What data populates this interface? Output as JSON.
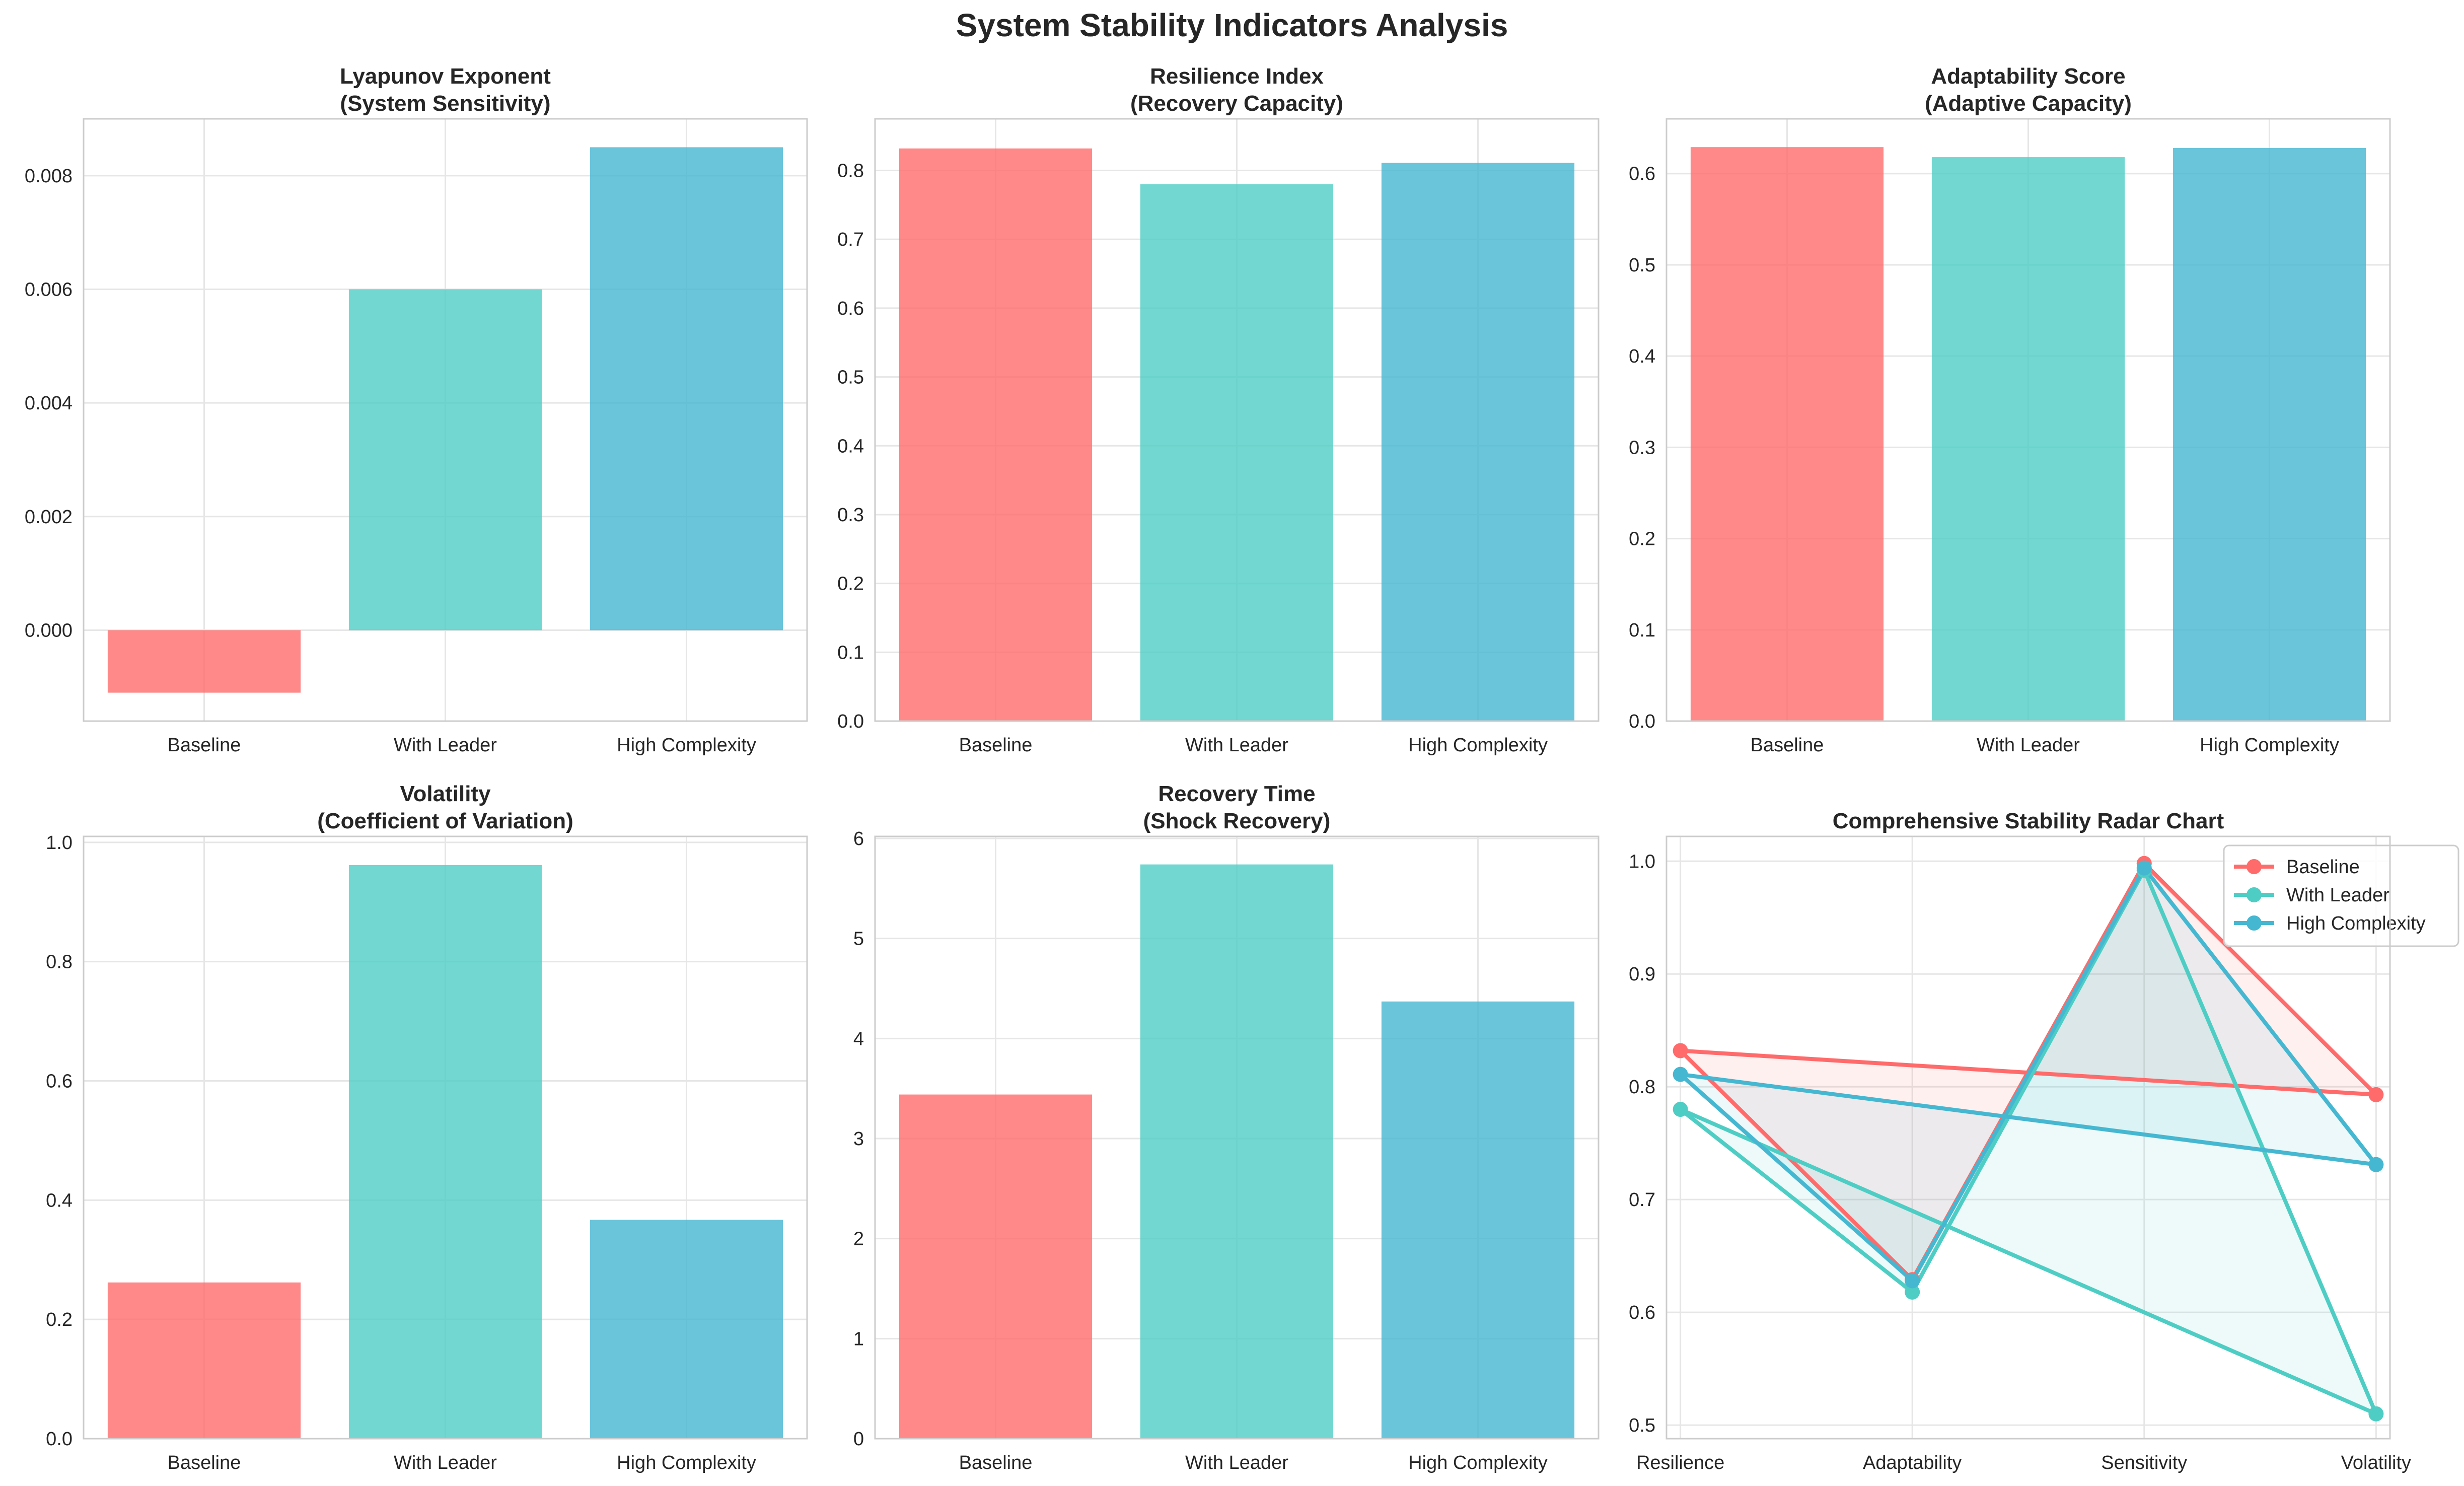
{
  "figure_title": "System Stability Indicators Analysis",
  "colors": {
    "baseline": "#ff6b6b",
    "with_leader": "#4ecdc4",
    "high_complexity": "#45b7d1",
    "grid": "#e6e6e6",
    "spine": "#cccccc",
    "text": "#262626"
  },
  "chart_data": [
    {
      "type": "bar",
      "title": "Lyapunov Exponent",
      "subtitle": "(System Sensitivity)",
      "categories": [
        "Baseline",
        "With Leader",
        "High Complexity"
      ],
      "values": [
        -0.0011,
        0.006,
        0.0085
      ],
      "ylim": [
        -0.0016,
        0.009
      ],
      "yticks": [
        0.0,
        0.002,
        0.004,
        0.006,
        0.008
      ],
      "ytick_labels": [
        "0.000",
        "0.002",
        "0.004",
        "0.006",
        "0.008"
      ],
      "grid": true
    },
    {
      "type": "bar",
      "title": "Resilience Index",
      "subtitle": "(Recovery Capacity)",
      "categories": [
        "Baseline",
        "With Leader",
        "High Complexity"
      ],
      "values": [
        0.832,
        0.78,
        0.811
      ],
      "ylim": [
        0,
        0.875
      ],
      "yticks": [
        0,
        0.1,
        0.2,
        0.3,
        0.4,
        0.5,
        0.6,
        0.7,
        0.8
      ],
      "ytick_labels": [
        "0.0",
        "0.1",
        "0.2",
        "0.3",
        "0.4",
        "0.5",
        "0.6",
        "0.7",
        "0.8"
      ],
      "grid": true
    },
    {
      "type": "bar",
      "title": "Adaptability Score",
      "subtitle": "(Adaptive Capacity)",
      "categories": [
        "Baseline",
        "With Leader",
        "High Complexity"
      ],
      "values": [
        0.629,
        0.618,
        0.628
      ],
      "ylim": [
        0,
        0.66
      ],
      "yticks": [
        0,
        0.1,
        0.2,
        0.3,
        0.4,
        0.5,
        0.6
      ],
      "ytick_labels": [
        "0.0",
        "0.1",
        "0.2",
        "0.3",
        "0.4",
        "0.5",
        "0.6"
      ],
      "grid": true
    },
    {
      "type": "bar",
      "title": "Volatility",
      "subtitle": "(Coefficient of Variation)",
      "categories": [
        "Baseline",
        "With Leader",
        "High Complexity"
      ],
      "values": [
        0.262,
        0.962,
        0.367
      ],
      "ylim": [
        0,
        1.01
      ],
      "yticks": [
        0,
        0.2,
        0.4,
        0.6,
        0.8,
        1.0
      ],
      "ytick_labels": [
        "0.0",
        "0.2",
        "0.4",
        "0.6",
        "0.8",
        "1.0"
      ],
      "grid": true
    },
    {
      "type": "bar",
      "title": "Recovery Time",
      "subtitle": "(Shock Recovery)",
      "categories": [
        "Baseline",
        "With Leader",
        "High Complexity"
      ],
      "values": [
        3.44,
        5.74,
        4.37
      ],
      "ylim": [
        0,
        6.02
      ],
      "yticks": [
        0,
        1,
        2,
        3,
        4,
        5,
        6
      ],
      "ytick_labels": [
        "0",
        "1",
        "2",
        "3",
        "4",
        "5",
        "6"
      ],
      "grid": true
    },
    {
      "type": "line",
      "title": "Comprehensive Stability Radar Chart",
      "subtitle": "",
      "categories": [
        "Resilience",
        "Adaptability",
        "Sensitivity",
        "Volatility"
      ],
      "series": [
        {
          "name": "Baseline",
          "values": [
            0.832,
            0.629,
            0.998,
            0.793
          ]
        },
        {
          "name": "With Leader",
          "values": [
            0.78,
            0.618,
            0.992,
            0.51
          ]
        },
        {
          "name": "High Complexity",
          "values": [
            0.811,
            0.628,
            0.994,
            0.731
          ]
        }
      ],
      "ylim": [
        0.488,
        1.022
      ],
      "yticks": [
        0.5,
        0.6,
        0.7,
        0.8,
        0.9,
        1.0
      ],
      "ytick_labels": [
        "0.5",
        "0.6",
        "0.7",
        "0.8",
        "0.9",
        "1.0"
      ],
      "grid": true,
      "legend": "top-right",
      "filled": true
    }
  ]
}
